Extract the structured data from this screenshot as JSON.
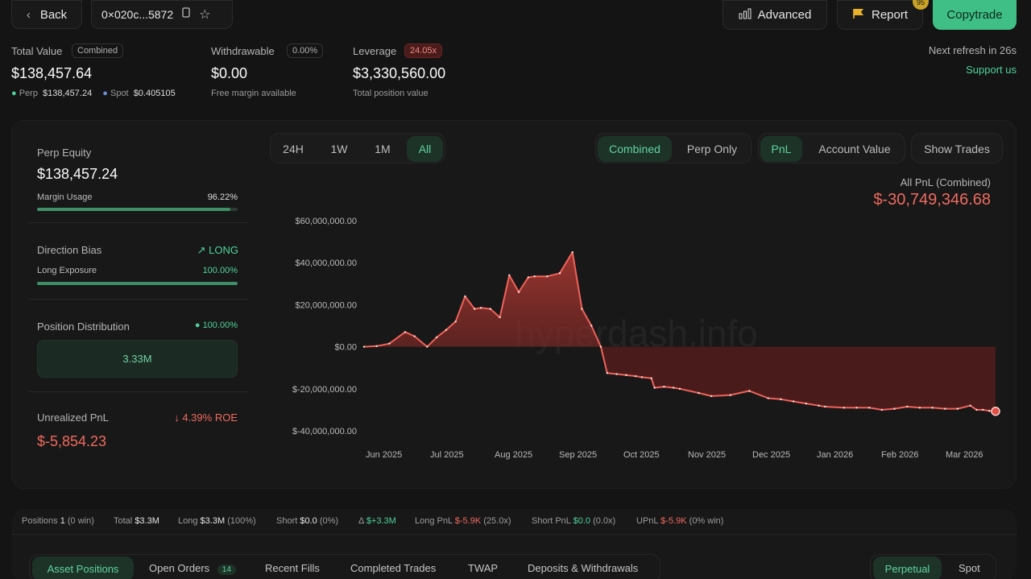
{
  "header": {
    "back_label": "Back",
    "address": "0×020c...5872",
    "advanced_label": "Advanced",
    "report_label": "Report",
    "report_badge": "95",
    "copytrade_label": "Copytrade"
  },
  "summary": {
    "total_value_label": "Total Value",
    "total_value_pill": "Combined",
    "total_value": "$138,457.64",
    "perp_label": "Perp",
    "perp_value": "$138,457.24",
    "spot_label": "Spot",
    "spot_value": "$0.405105",
    "withdrawable_label": "Withdrawable",
    "withdrawable_pill": "0.00%",
    "withdrawable_value": "$0.00",
    "withdrawable_sub": "Free margin available",
    "leverage_label": "Leverage",
    "leverage_pill": "24.05x",
    "leverage_value": "$3,330,560.00",
    "leverage_sub": "Total position value",
    "next_refresh": "Next refresh in 26s",
    "support": "Support us"
  },
  "left_panel": {
    "perp_equity_label": "Perp Equity",
    "perp_equity": "$138,457.24",
    "margin_usage_label": "Margin Usage",
    "margin_usage": "96.22%",
    "margin_usage_fraction": 0.9622,
    "direction_label": "Direction Bias",
    "direction_value": "LONG",
    "long_exposure_label": "Long Exposure",
    "long_exposure": "100.00%",
    "long_exposure_fraction": 1.0,
    "position_dist_label": "Position Distribution",
    "position_dist_pct": "100.00%",
    "position_dist_value": "3.33M",
    "unrealized_label": "Unrealized PnL",
    "unrealized_roe": "4.39% ROE",
    "unrealized_value": "$-5,854.23"
  },
  "chart_controls": {
    "ranges": [
      "24H",
      "1W",
      "1M",
      "All"
    ],
    "active_range": "All",
    "modes": [
      "Combined",
      "Perp Only"
    ],
    "metrics": [
      "PnL",
      "Account Value"
    ],
    "show_trades": "Show Trades"
  },
  "chart_header": {
    "title": "All PnL (Combined)",
    "value": "$-30,749,346.68"
  },
  "watermark": "hyperdash.info",
  "chart_data": {
    "type": "area",
    "title": "All PnL (Combined)",
    "yticks": [
      "$60,000,000.00",
      "$40,000,000.00",
      "$20,000,000.00",
      "$0.00",
      "$-20,000,000.00",
      "$-40,000,000.00"
    ],
    "ytick_values": [
      60000000,
      40000000,
      20000000,
      0,
      -20000000,
      -40000000
    ],
    "ylim": [
      -40000000,
      60000000
    ],
    "xticks": [
      "Jun 2025",
      "Jul 2025",
      "Aug 2025",
      "Sep 2025",
      "Oct 2025",
      "Nov 2025",
      "Dec 2025",
      "Jan 2026",
      "Feb 2026",
      "Mar 2026"
    ],
    "x": [
      0,
      0.02,
      0.04,
      0.065,
      0.08,
      0.1,
      0.115,
      0.13,
      0.145,
      0.16,
      0.175,
      0.185,
      0.2,
      0.215,
      0.23,
      0.245,
      0.26,
      0.27,
      0.29,
      0.31,
      0.33,
      0.345,
      0.36,
      0.375,
      0.385,
      0.4,
      0.415,
      0.43,
      0.44,
      0.455,
      0.46,
      0.475,
      0.49,
      0.5,
      0.53,
      0.55,
      0.58,
      0.61,
      0.64,
      0.66,
      0.68,
      0.7,
      0.72,
      0.73,
      0.76,
      0.78,
      0.8,
      0.82,
      0.84,
      0.86,
      0.88,
      0.9,
      0.92,
      0.94,
      0.96,
      0.97,
      0.98,
      0.99,
      1.0
    ],
    "values": [
      0,
      0.3,
      1.5,
      7.0,
      5.0,
      0,
      4.5,
      8.0,
      12.0,
      24.0,
      18.0,
      18.5,
      18.0,
      14.0,
      34.0,
      26.0,
      33.0,
      33.5,
      33.5,
      35.0,
      45.0,
      18.0,
      10.0,
      0,
      -12.5,
      -13.0,
      -13.5,
      -14.0,
      -14.5,
      -15.0,
      -19.5,
      -19.0,
      -19.5,
      -20.0,
      -22.0,
      -23.5,
      -23.0,
      -21.0,
      -24.5,
      -25.0,
      -26.0,
      -27.0,
      -28.0,
      -28.5,
      -29.0,
      -29.0,
      -29.0,
      -30.0,
      -29.5,
      -28.5,
      -29.0,
      -29.0,
      -29.5,
      -29.5,
      -28.0,
      -30.0,
      -30.0,
      -30.5,
      -30.7
    ]
  },
  "stats": {
    "positions_label": "Positions",
    "positions_value": "1",
    "positions_sub": "(0 win)",
    "total_label": "Total",
    "total_value": "$3.3M",
    "long_label": "Long",
    "long_value": "$3.3M",
    "long_sub": "(100%)",
    "short_label": "Short",
    "short_value": "$0.0",
    "short_sub": "(0%)",
    "delta_label": "Δ",
    "delta_value": "$+3.3M",
    "long_pnl_label": "Long PnL",
    "long_pnl_value": "$-5.9K",
    "long_pnl_sub": "(25.0x)",
    "short_pnl_label": "Short PnL",
    "short_pnl_value": "$0.0",
    "short_pnl_sub": "(0.0x)",
    "upnl_label": "UPnL",
    "upnl_value": "$-5.9K",
    "upnl_sub": "(0% win)"
  },
  "bottom_tabs": {
    "asset_positions": "Asset Positions",
    "open_orders": "Open Orders",
    "open_orders_count": "14",
    "recent_fills": "Recent Fills",
    "completed_trades": "Completed Trades",
    "twap": "TWAP",
    "deposits": "Deposits & Withdrawals",
    "perpetual": "Perpetual",
    "spot": "Spot"
  }
}
